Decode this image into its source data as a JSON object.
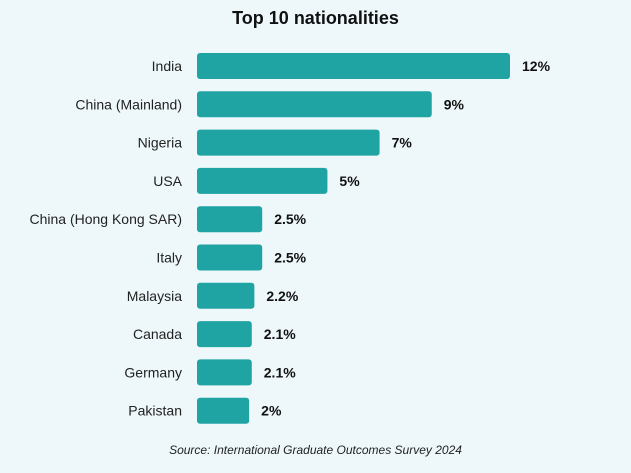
{
  "chart_data": {
    "type": "bar",
    "orientation": "horizontal",
    "title": "Top 10 nationalities",
    "categories": [
      "India",
      "China (Mainland)",
      "Nigeria",
      "USA",
      "China (Hong Kong SAR)",
      "Italy",
      "Malaysia",
      "Canada",
      "Germany",
      "Pakistan"
    ],
    "values": [
      12,
      9,
      7,
      5,
      2.5,
      2.5,
      2.2,
      2.1,
      2.1,
      2
    ],
    "value_labels": [
      "12%",
      "9%",
      "7%",
      "5%",
      "2.5%",
      "2.5%",
      "2.2%",
      "2.1%",
      "2.1%",
      "2%"
    ],
    "bar_color": "#1fa3a3",
    "grid": false,
    "legend": "none",
    "source": "Source: International Graduate Outcomes Survey 2024"
  }
}
